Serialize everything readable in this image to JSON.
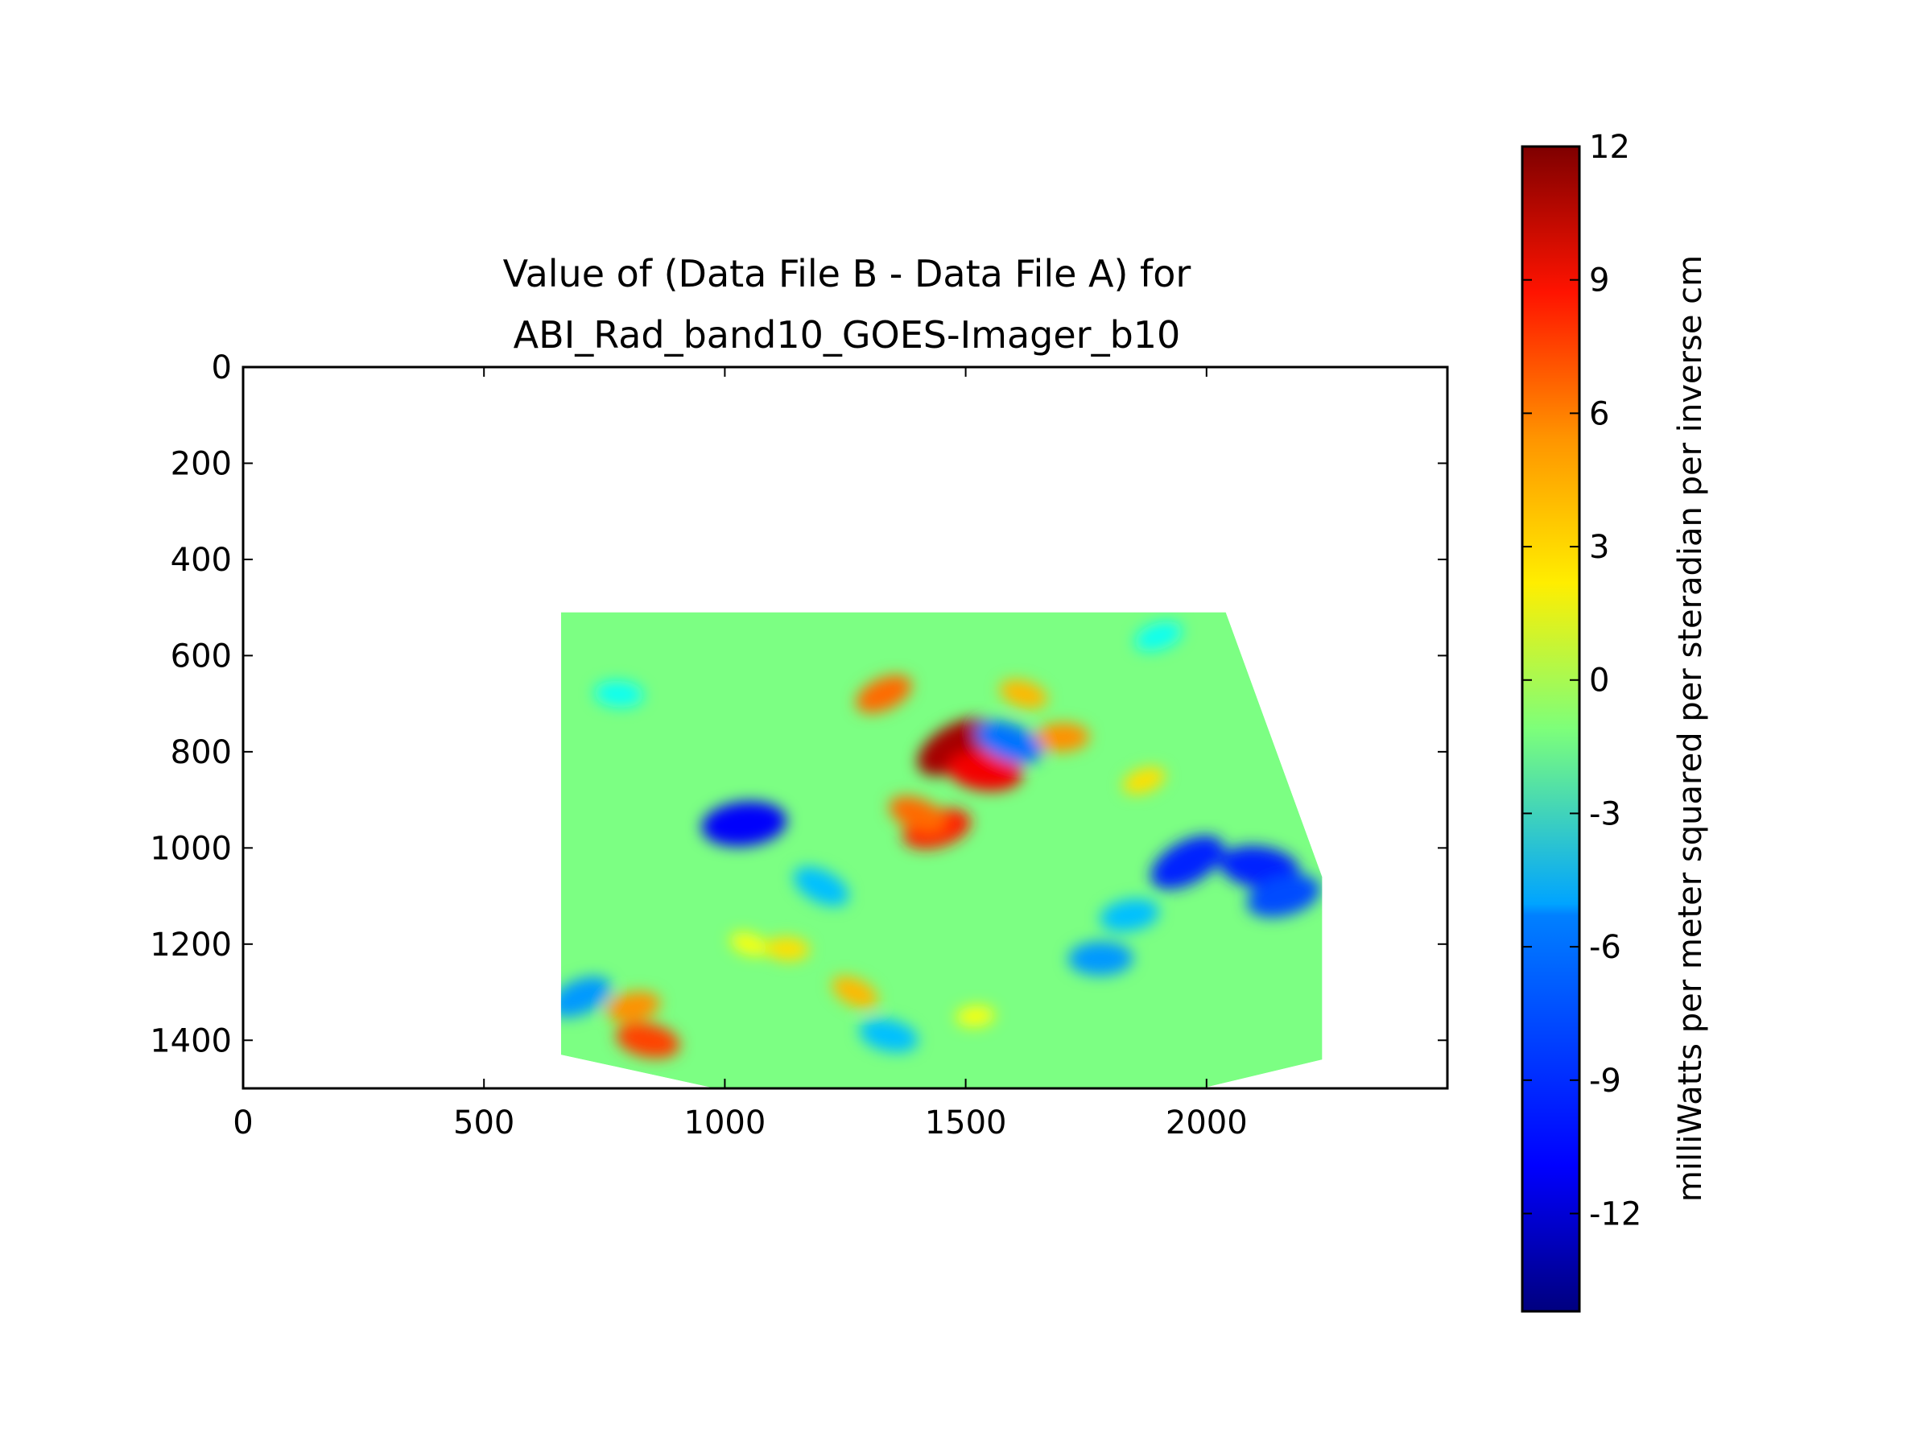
{
  "chart_data": {
    "type": "heatmap",
    "title": "Value of (Data File B - Data File A) for\nABI_Rad_band10_GOES-Imager_b10",
    "title_lines": [
      "Value of (Data File B - Data File A) for",
      "ABI_Rad_band10_GOES-Imager_b10"
    ],
    "xlim": [
      0,
      2500
    ],
    "ylim": [
      1500,
      0
    ],
    "y_inverted": true,
    "x_ticks": [
      0,
      500,
      1000,
      1500,
      2000
    ],
    "x_tick_labels": [
      "0",
      "500",
      "1000",
      "1500",
      "2000"
    ],
    "y_ticks": [
      0,
      200,
      400,
      600,
      800,
      1000,
      1200,
      1400
    ],
    "y_tick_labels": [
      "0",
      "200",
      "400",
      "600",
      "800",
      "1000",
      "1200",
      "1400"
    ],
    "data_region": {
      "outline": [
        [
          660,
          510
        ],
        [
          2040,
          510
        ],
        [
          2240,
          1060
        ],
        [
          2240,
          1440
        ],
        [
          1990,
          1500
        ],
        [
          980,
          1500
        ],
        [
          660,
          1430
        ]
      ]
    },
    "colormap": "jet",
    "colorbar": {
      "label": "milliWatts per meter squared per steradian per inverse cm",
      "vmin": -14.2,
      "vmax": 12,
      "ticks": [
        12,
        9,
        6,
        3,
        0,
        -3,
        -6,
        -9,
        -12
      ],
      "tick_labels": [
        "12",
        "9",
        "6",
        "3",
        "0",
        "-3",
        "-6",
        "-9",
        "-12"
      ]
    },
    "features": [
      {
        "value": 11,
        "x": 1480,
        "y": 790
      },
      {
        "value": 9,
        "x": 1540,
        "y": 840
      },
      {
        "value": 8,
        "x": 1440,
        "y": 960
      },
      {
        "value": 6,
        "x": 1400,
        "y": 930
      },
      {
        "value": 5,
        "x": 1700,
        "y": 770
      },
      {
        "value": 6,
        "x": 1330,
        "y": 680
      },
      {
        "value": 7,
        "x": 840,
        "y": 1400
      },
      {
        "value": 5,
        "x": 810,
        "y": 1330
      },
      {
        "value": 4,
        "x": 1270,
        "y": 1300
      },
      {
        "value": 3,
        "x": 1130,
        "y": 1210
      },
      {
        "value": 3,
        "x": 1870,
        "y": 860
      },
      {
        "value": 4,
        "x": 1620,
        "y": 680
      },
      {
        "value": -11,
        "x": 1040,
        "y": 950
      },
      {
        "value": -10,
        "x": 1960,
        "y": 1030
      },
      {
        "value": -10,
        "x": 2110,
        "y": 1040
      },
      {
        "value": -9,
        "x": 2160,
        "y": 1100
      },
      {
        "value": -8,
        "x": 1590,
        "y": 780
      },
      {
        "value": -7,
        "x": 1780,
        "y": 1230
      },
      {
        "value": -7,
        "x": 700,
        "y": 1310
      },
      {
        "value": -6,
        "x": 1340,
        "y": 1390
      },
      {
        "value": -6,
        "x": 1840,
        "y": 1140
      },
      {
        "value": -6,
        "x": 1200,
        "y": 1080
      },
      {
        "value": -4,
        "x": 780,
        "y": 680
      },
      {
        "value": -4,
        "x": 1900,
        "y": 560
      },
      {
        "value": 2,
        "x": 1050,
        "y": 1200
      },
      {
        "value": 2,
        "x": 1520,
        "y": 1350
      }
    ]
  }
}
